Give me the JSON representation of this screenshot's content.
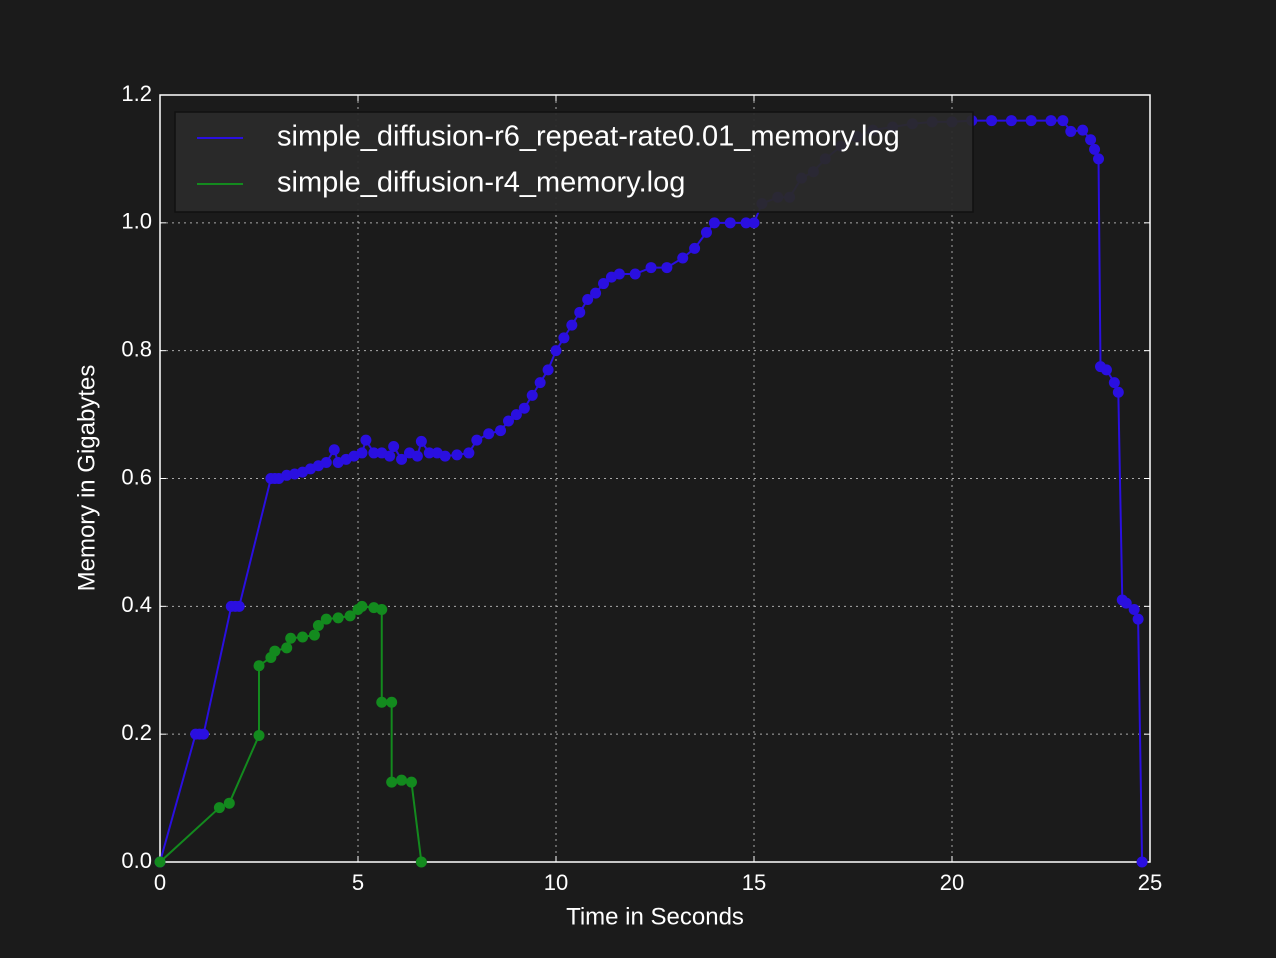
{
  "chart_data": {
    "type": "line",
    "x_label": "Time in Seconds",
    "y_label": "Memory in Gigabytes",
    "xlim": [
      0,
      25
    ],
    "ylim": [
      0,
      1.2
    ],
    "xticks": [
      0,
      5,
      10,
      15,
      20,
      25
    ],
    "yticks": [
      {
        "value": 0,
        "label": "0.0"
      },
      0.2,
      0.4,
      0.6,
      0.8,
      {
        "value": 1,
        "label": "1.0"
      },
      1.2
    ],
    "grid": true,
    "legend": "upper left",
    "series": [
      {
        "name": "simple_diffusion-r6_repeat-rate0.01_memory.log",
        "color": "#2a0fe0",
        "x": [
          0,
          0.9,
          1.0,
          1.1,
          1.8,
          1.9,
          2.0,
          2.8,
          2.9,
          3.0,
          3.2,
          3.4,
          3.6,
          3.8,
          4.0,
          4.2,
          4.4,
          4.5,
          4.7,
          4.9,
          5.1,
          5.2,
          5.4,
          5.6,
          5.8,
          5.9,
          6.1,
          6.3,
          6.5,
          6.6,
          6.8,
          7.0,
          7.2,
          7.5,
          7.8,
          8.0,
          8.3,
          8.6,
          8.8,
          9.0,
          9.2,
          9.4,
          9.6,
          9.8,
          10.0,
          10.2,
          10.4,
          10.6,
          10.8,
          11.0,
          11.2,
          11.4,
          11.6,
          12.0,
          12.4,
          12.8,
          13.2,
          13.5,
          13.8,
          14.0,
          14.4,
          14.8,
          15.0,
          15.2,
          15.6,
          15.9,
          16.2,
          16.5,
          16.8,
          17.2,
          17.6,
          18.0,
          18.5,
          19.0,
          19.5,
          20.0,
          20.5,
          21.0,
          21.5,
          22.0,
          22.5,
          22.8,
          23.0,
          23.3,
          23.5,
          23.6,
          23.7,
          23.75,
          23.9,
          24.1,
          24.2,
          24.3,
          24.4,
          24.6,
          24.7,
          24.8
        ],
        "values": [
          0,
          0.2,
          0.2,
          0.2,
          0.4,
          0.4,
          0.4,
          0.6,
          0.6,
          0.6,
          0.605,
          0.607,
          0.61,
          0.615,
          0.62,
          0.625,
          0.645,
          0.625,
          0.63,
          0.635,
          0.64,
          0.66,
          0.64,
          0.64,
          0.635,
          0.65,
          0.63,
          0.64,
          0.635,
          0.658,
          0.64,
          0.64,
          0.635,
          0.637,
          0.64,
          0.66,
          0.67,
          0.675,
          0.69,
          0.7,
          0.71,
          0.73,
          0.75,
          0.77,
          0.8,
          0.82,
          0.84,
          0.86,
          0.88,
          0.89,
          0.905,
          0.915,
          0.92,
          0.92,
          0.93,
          0.93,
          0.945,
          0.96,
          0.985,
          1.0,
          1.0,
          1.0,
          1.0,
          1.03,
          1.04,
          1.04,
          1.07,
          1.08,
          1.1,
          1.12,
          1.135,
          1.145,
          1.15,
          1.155,
          1.158,
          1.158,
          1.16,
          1.16,
          1.16,
          1.16,
          1.16,
          1.16,
          1.143,
          1.145,
          1.13,
          1.115,
          1.1,
          0.775,
          0.77,
          0.75,
          0.735,
          0.41,
          0.405,
          0.395,
          0.38,
          0
        ]
      },
      {
        "name": "simple_diffusion-r4_memory.log",
        "color": "#138a1e",
        "x": [
          0,
          1.5,
          1.75,
          2.5,
          2.5,
          2.8,
          2.9,
          3.2,
          3.3,
          3.6,
          3.9,
          4.0,
          4.2,
          4.5,
          4.8,
          5.0,
          5.1,
          5.4,
          5.6,
          5.6,
          5.85,
          5.85,
          6.1,
          6.35,
          6.6
        ],
        "values": [
          0,
          0.085,
          0.092,
          0.198,
          0.307,
          0.32,
          0.33,
          0.335,
          0.35,
          0.352,
          0.355,
          0.37,
          0.38,
          0.382,
          0.385,
          0.395,
          0.4,
          0.398,
          0.395,
          0.25,
          0.25,
          0.125,
          0.128,
          0.125,
          0
        ]
      }
    ]
  }
}
